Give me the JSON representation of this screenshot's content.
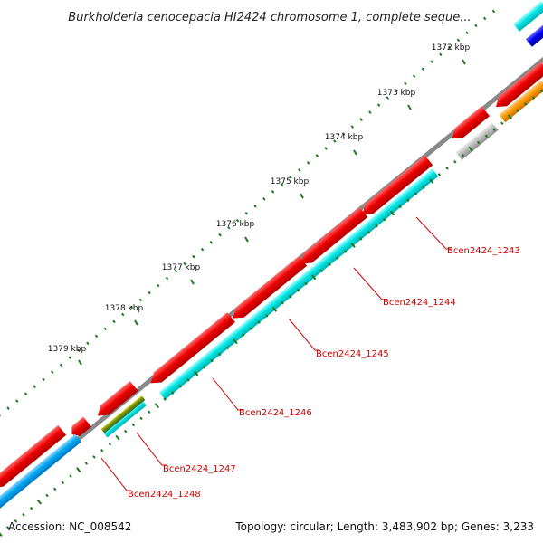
{
  "title": "Burkholderia cenocepacia HI2424 chromosome 1, complete seque...",
  "footer": {
    "accession": "Accession: NC_008542",
    "topology": "Topology: circular; Length: 3,483,902 bp; Genes: 3,233"
  },
  "ticks": [
    {
      "label": "1372 kbp"
    },
    {
      "label": "1373 kbp"
    },
    {
      "label": "1374 kbp"
    },
    {
      "label": "1375 kbp"
    },
    {
      "label": "1376 kbp"
    },
    {
      "label": "1377 kbp"
    },
    {
      "label": "1378 kbp"
    },
    {
      "label": "1379 kbp"
    }
  ],
  "genes": [
    {
      "label": "Bcen2424_1243"
    },
    {
      "label": "Bcen2424_1244"
    },
    {
      "label": "Bcen2424_1245"
    },
    {
      "label": "Bcen2424_1246"
    },
    {
      "label": "Bcen2424_1247"
    },
    {
      "label": "Bcen2424_1248"
    }
  ],
  "colors": {
    "cds": "#ee0000",
    "gene": "#00e5e5",
    "gene_alt": "#00a8f0",
    "rrna": "#ff9900",
    "trna": "#bdbdbd",
    "misc": "#7a9a00",
    "blue": "#0000ee",
    "backbone": "#888888",
    "tick": "#1a7a1a",
    "label": "#cc0000"
  }
}
